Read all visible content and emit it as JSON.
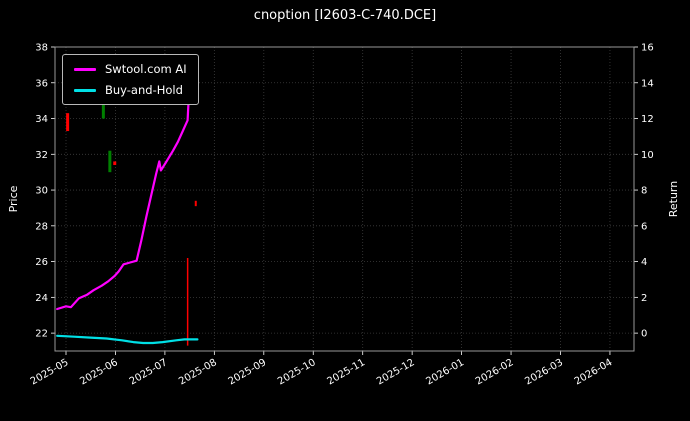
{
  "chart_data": {
    "type": "line",
    "title": "cnoption [I2603-C-740.DCE]",
    "ylabel_left": "Price",
    "ylabel_right": "Return",
    "background": "#000000",
    "grid_color": "#3d3d3d",
    "text_color": "#ffffff",
    "spine_color": "#999999",
    "legend_position": "upper-left",
    "grid": true,
    "x_ticks": [
      "2025-05",
      "2025-06",
      "2025-07",
      "2025-08",
      "2025-09",
      "2025-10",
      "2025-11",
      "2025-12",
      "2026-01",
      "2026-02",
      "2026-03",
      "2026-04"
    ],
    "ylim_left": [
      21,
      38
    ],
    "yticks_left": [
      22,
      24,
      26,
      28,
      30,
      32,
      34,
      36,
      38
    ],
    "ylim_right": [
      -1,
      16
    ],
    "yticks_right": [
      0,
      2,
      4,
      6,
      8,
      10,
      12,
      14,
      16
    ],
    "series": [
      {
        "name": "Swtool.com AI",
        "color": "#ff00ff",
        "width": 2.2,
        "points": [
          [
            "2025-04-26",
            23.35
          ],
          [
            "2025-05-01",
            23.5
          ],
          [
            "2025-05-04",
            23.45
          ],
          [
            "2025-05-09",
            23.95
          ],
          [
            "2025-05-14",
            24.15
          ],
          [
            "2025-05-18",
            24.4
          ],
          [
            "2025-05-23",
            24.65
          ],
          [
            "2025-05-27",
            24.9
          ],
          [
            "2025-05-31",
            25.2
          ],
          [
            "2025-06-03",
            25.45
          ],
          [
            "2025-06-06",
            25.85
          ],
          [
            "2025-06-10",
            25.95
          ],
          [
            "2025-06-14",
            26.05
          ],
          [
            "2025-06-17",
            27.2
          ],
          [
            "2025-06-20",
            28.5
          ],
          [
            "2025-06-23",
            29.7
          ],
          [
            "2025-06-26",
            30.9
          ],
          [
            "2025-06-28",
            31.6
          ],
          [
            "2025-06-29",
            31.1
          ],
          [
            "2025-07-02",
            31.6
          ],
          [
            "2025-07-06",
            32.2
          ],
          [
            "2025-07-09",
            32.7
          ],
          [
            "2025-07-12",
            33.3
          ],
          [
            "2025-07-15",
            33.9
          ],
          [
            "2025-07-16",
            35.8
          ]
        ]
      },
      {
        "name": "Buy-and-Hold",
        "color": "#00e0e6",
        "width": 2.2,
        "points": [
          [
            "2025-04-26",
            21.85
          ],
          [
            "2025-05-06",
            21.8
          ],
          [
            "2025-05-16",
            21.75
          ],
          [
            "2025-05-26",
            21.7
          ],
          [
            "2025-06-05",
            21.6
          ],
          [
            "2025-06-12",
            21.5
          ],
          [
            "2025-06-18",
            21.45
          ],
          [
            "2025-06-24",
            21.45
          ],
          [
            "2025-06-30",
            21.5
          ],
          [
            "2025-07-08",
            21.6
          ],
          [
            "2025-07-13",
            21.65
          ],
          [
            "2025-07-21",
            21.65
          ]
        ]
      }
    ],
    "markers": [
      {
        "date": "2025-05-02",
        "color": "#ff0000",
        "low": 33.3,
        "high": 34.3,
        "w": 3
      },
      {
        "date": "2025-05-24",
        "color": "#008000",
        "low": 34.0,
        "high": 35.2,
        "w": 3
      },
      {
        "date": "2025-05-28",
        "color": "#008000",
        "low": 31.0,
        "high": 32.2,
        "w": 3
      },
      {
        "date": "2025-05-31",
        "color": "#ff0000",
        "low": 31.4,
        "high": 31.6,
        "w": 3
      },
      {
        "date": "2025-07-15",
        "color": "#ff0000",
        "low": 21.3,
        "high": 26.2,
        "w": 1.5
      },
      {
        "date": "2025-07-20",
        "color": "#ff0000",
        "low": 29.1,
        "high": 29.4,
        "w": 2
      }
    ]
  }
}
